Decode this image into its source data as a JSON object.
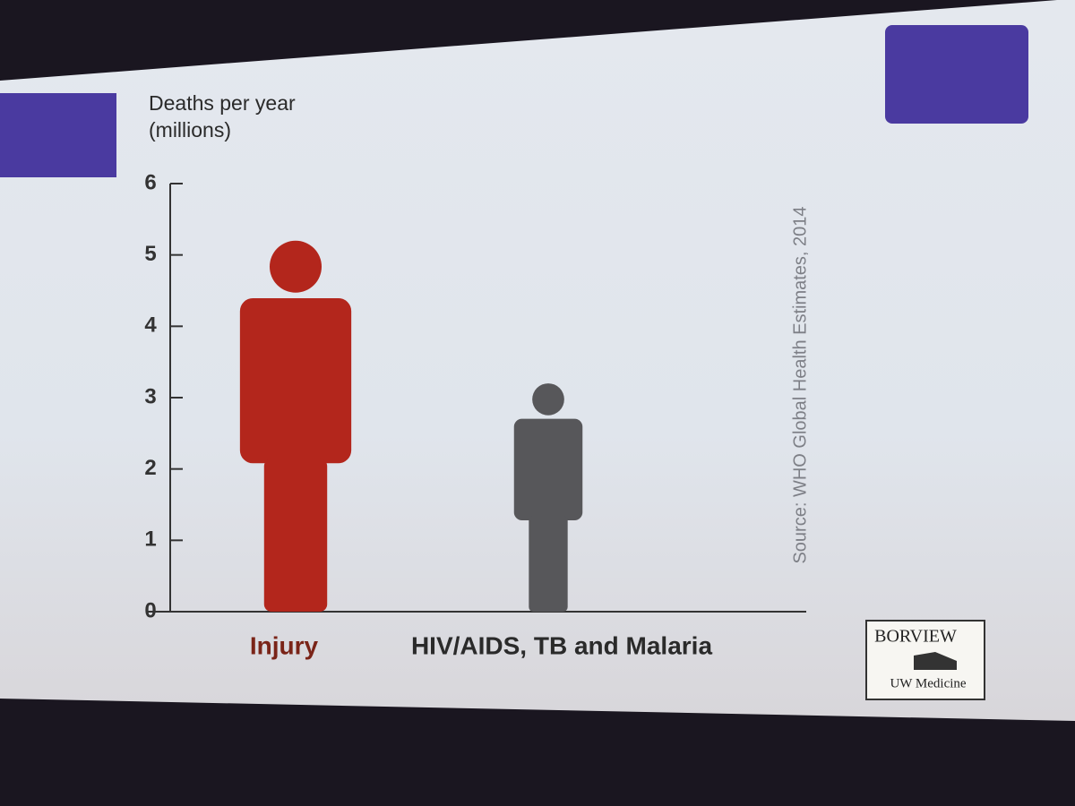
{
  "chart_data": {
    "type": "pictograph",
    "y_label": "Deaths per year (millions)",
    "categories": [
      "Injury",
      "HIV/AIDS, TB and Malaria"
    ],
    "values": [
      5.2,
      3.2
    ],
    "colors": [
      "#b3261c",
      "#57575a"
    ],
    "category_label_colors": [
      "#7a2418",
      "#2a2a2a"
    ],
    "ylim": [
      0,
      6
    ],
    "yticks": [
      0,
      1,
      2,
      3,
      4,
      5,
      6
    ],
    "source": "Source: WHO Global Health Estimates, 2014",
    "logo": [
      "BORVIEW",
      "UW Medicine"
    ]
  }
}
